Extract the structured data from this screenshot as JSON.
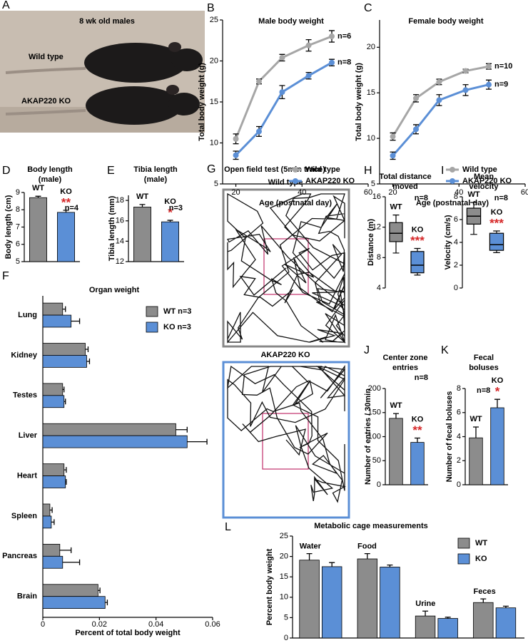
{
  "photo": {
    "panel": "A",
    "caption": "8 wk old males",
    "labels": [
      "Wild type",
      "AKAP220 KO"
    ]
  },
  "trace": {
    "panel": "G",
    "title": "Open field test (5min trace)",
    "labels": [
      "Wild type",
      "AKAP220 KO"
    ]
  },
  "chart_data": [
    {
      "panel": "B",
      "type": "line",
      "title": "Male body weight",
      "x_label": "Age (postnatal day)",
      "y_label": "Total body weight (g)",
      "xlim": [
        16,
        60
      ],
      "xticks": [
        20,
        40,
        60
      ],
      "ylim": [
        5,
        25
      ],
      "yticks": [
        5,
        10,
        15,
        20,
        25
      ],
      "legend": "lower right",
      "x": [
        20,
        27,
        34,
        42,
        49
      ],
      "series": [
        {
          "name": "Wild type",
          "color": "#a6a6a6",
          "values": [
            10.5,
            17.5,
            20.4,
            21.9,
            23.0
          ],
          "errors": [
            0.6,
            0.3,
            0.4,
            0.7,
            0.7
          ],
          "n_label": "n=6"
        },
        {
          "name": "AKAP220 KO",
          "color": "#5b8fd6",
          "values": [
            8.5,
            11.4,
            16.2,
            18.2,
            19.8
          ],
          "errors": [
            0.5,
            0.6,
            0.8,
            0.4,
            0.4
          ],
          "n_label": "n=8"
        }
      ]
    },
    {
      "panel": "C",
      "type": "line",
      "title": "Female body weight",
      "x_label": "Age (postnatal day)",
      "y_label": "Total body weight (g)",
      "xlim": [
        16,
        60
      ],
      "xticks": [
        20,
        40,
        60
      ],
      "ylim": [
        5,
        23
      ],
      "yticks": [
        5,
        10,
        15,
        20
      ],
      "legend": "lower right",
      "x": [
        20,
        27,
        34,
        42,
        49
      ],
      "series": [
        {
          "name": "Wild type",
          "color": "#a6a6a6",
          "values": [
            10.2,
            14.4,
            16.2,
            17.4,
            17.9
          ],
          "errors": [
            0.4,
            0.4,
            0.3,
            0.2,
            0.3
          ],
          "n_label": "n=10"
        },
        {
          "name": "AKAP220 KO",
          "color": "#5b8fd6",
          "values": [
            8.1,
            11.0,
            14.2,
            15.3,
            15.9
          ],
          "errors": [
            0.4,
            0.5,
            0.6,
            0.6,
            0.5
          ],
          "n_label": "n=9"
        }
      ]
    },
    {
      "panel": "D",
      "type": "bar",
      "title": [
        "Body length",
        "(male)"
      ],
      "y_label": "Body length (cm)",
      "ylim": [
        5,
        9
      ],
      "yticks": [
        5,
        6,
        7,
        8,
        9
      ],
      "categories": [
        "WT",
        "KO"
      ],
      "values": [
        8.7,
        7.85
      ],
      "errors": [
        0.08,
        0.12
      ],
      "colors": [
        "#8c8c8c",
        "#5b8fd6"
      ],
      "n_label": "n=4",
      "significance": "**"
    },
    {
      "panel": "E",
      "type": "bar",
      "title": [
        "Tibia length",
        "(male)"
      ],
      "y_label": "Tibia length (mm)",
      "ylim": [
        12,
        18.5
      ],
      "yticks": [
        12,
        14,
        16,
        18
      ],
      "categories": [
        "WT",
        "KO"
      ],
      "values": [
        17.35,
        15.9
      ],
      "errors": [
        0.25,
        0.15
      ],
      "colors": [
        "#8c8c8c",
        "#5b8fd6"
      ],
      "n_label": "n=3",
      "significance": "*"
    },
    {
      "panel": "F",
      "type": "hbar",
      "title": "Organ weight",
      "x_label": "Percent of total body weight",
      "xlim": [
        0,
        0.06
      ],
      "xticks": [
        0,
        0.02,
        0.04,
        0.06
      ],
      "legend": "upper right",
      "categories": [
        "Lung",
        "Kidney",
        "Testes",
        "Liver",
        "Heart",
        "Spleen",
        "Pancreas",
        "Brain"
      ],
      "series": [
        {
          "name": "WT n=3",
          "color": "#8c8c8c",
          "values": [
            0.007,
            0.015,
            0.007,
            0.047,
            0.0075,
            0.0025,
            0.006,
            0.0195
          ],
          "errors": [
            0.001,
            0.001,
            0.0005,
            0.004,
            0.0008,
            0.0008,
            0.004,
            0.0007
          ]
        },
        {
          "name": "KO n=3",
          "color": "#5b8fd6",
          "values": [
            0.01,
            0.0155,
            0.0075,
            0.051,
            0.008,
            0.003,
            0.007,
            0.022
          ],
          "errors": [
            0.003,
            0.001,
            0.0005,
            0.007,
            0.0003,
            0.001,
            0.006,
            0.0008
          ]
        }
      ]
    },
    {
      "panel": "H",
      "type": "box",
      "title": [
        "Total distance",
        "moved"
      ],
      "y_label": "Distance (m)",
      "ylim": [
        4,
        16
      ],
      "yticks": [
        4,
        8,
        12,
        16
      ],
      "categories": [
        "WT",
        "KO"
      ],
      "colors": [
        "#8c8c8c",
        "#5b8fd6"
      ],
      "boxes": [
        {
          "min": 8.6,
          "q1": 10.1,
          "median": 11.2,
          "q3": 12.6,
          "max": 13.6
        },
        {
          "min": 5.7,
          "q1": 6.0,
          "median": 7.0,
          "q3": 8.8,
          "max": 9.2
        }
      ],
      "n_label": "n=8",
      "significance": "***"
    },
    {
      "panel": "I",
      "type": "box",
      "title": [
        "Mean",
        "velocity"
      ],
      "y_label": "Velocity (cm/s)",
      "ylim": [
        0,
        8
      ],
      "yticks": [
        0,
        2,
        4,
        6,
        8
      ],
      "categories": [
        "WT",
        "KO"
      ],
      "colors": [
        "#8c8c8c",
        "#5b8fd6"
      ],
      "boxes": [
        {
          "min": 4.7,
          "q1": 5.6,
          "median": 6.3,
          "q3": 7.0,
          "max": 7.5
        },
        {
          "min": 3.1,
          "q1": 3.3,
          "median": 3.8,
          "q3": 4.8,
          "max": 5.0
        }
      ],
      "n_label": "n=8",
      "significance": "***"
    },
    {
      "panel": "J",
      "type": "bar",
      "title": [
        "Center zone",
        "entries"
      ],
      "y_label": "Number of entries / 30min",
      "ylim": [
        0,
        200
      ],
      "yticks": [
        0,
        50,
        100,
        150,
        200
      ],
      "categories": [
        "WT",
        "KO"
      ],
      "values": [
        138,
        88
      ],
      "errors": [
        10,
        9
      ],
      "colors": [
        "#8c8c8c",
        "#5b8fd6"
      ],
      "n_label": "n=8",
      "significance": "**"
    },
    {
      "panel": "K",
      "type": "bar",
      "title": [
        "Fecal",
        "boluses"
      ],
      "y_label": "Number of fecal boluses",
      "ylim": [
        0,
        8
      ],
      "yticks": [
        0,
        2,
        4,
        6,
        8
      ],
      "categories": [
        "WT",
        "KO"
      ],
      "values": [
        3.9,
        6.4
      ],
      "errors": [
        0.9,
        0.7
      ],
      "colors": [
        "#8c8c8c",
        "#5b8fd6"
      ],
      "n_label": "n=8",
      "significance": "*"
    },
    {
      "panel": "L",
      "type": "bar",
      "title": "Metabolic cage measurements",
      "y_label": "Percent body weight",
      "ylim": [
        0,
        25
      ],
      "yticks": [
        0,
        5,
        10,
        15,
        20,
        25
      ],
      "legend": "upper right",
      "categories": [
        "Water",
        "Food",
        "Urine",
        "Feces"
      ],
      "series": [
        {
          "name": "WT",
          "color": "#8c8c8c",
          "values": [
            19.1,
            19.4,
            5.4,
            8.7
          ],
          "errors": [
            1.6,
            1.3,
            1.2,
            0.9
          ]
        },
        {
          "name": "KO",
          "color": "#5b8fd6",
          "values": [
            17.5,
            17.4,
            4.8,
            7.4
          ],
          "errors": [
            1.0,
            0.5,
            0.3,
            0.4
          ]
        }
      ]
    }
  ]
}
